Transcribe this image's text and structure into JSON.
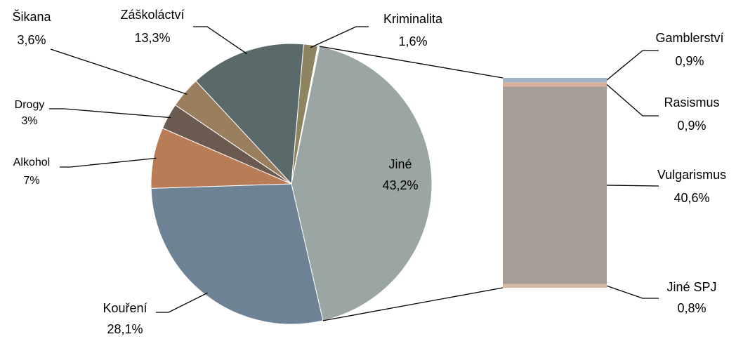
{
  "chart_data": {
    "type": "pie",
    "categories": [
      "Jiné",
      "Kouření",
      "Alkohol",
      "Drogy",
      "Šikana",
      "Záškoláctví",
      "Kriminalita"
    ],
    "values": [
      43.2,
      28.1,
      7,
      3,
      3.6,
      13.3,
      1.6
    ],
    "value_labels": [
      "43,2%",
      "28,1%",
      "7%",
      "3%",
      "3,6%",
      "13,3%",
      "1,6%"
    ],
    "colors": [
      "#9aa5a4",
      "#6e8296",
      "#b87c56",
      "#6b5a50",
      "#9a7f5f",
      "#5a6a6b",
      "#8e8460"
    ],
    "breakdown": {
      "categories": [
        "Gamblerství",
        "Rasismus",
        "Vulgarismus",
        "Jiné SPJ"
      ],
      "values": [
        0.9,
        0.9,
        40.6,
        0.8
      ],
      "value_labels": [
        "0,9%",
        "0,9%",
        "40,6%",
        "0,8%"
      ],
      "colors": [
        "#9fb4c4",
        "#d9b19a",
        "#a59d96",
        "#d5b9a2"
      ]
    }
  }
}
